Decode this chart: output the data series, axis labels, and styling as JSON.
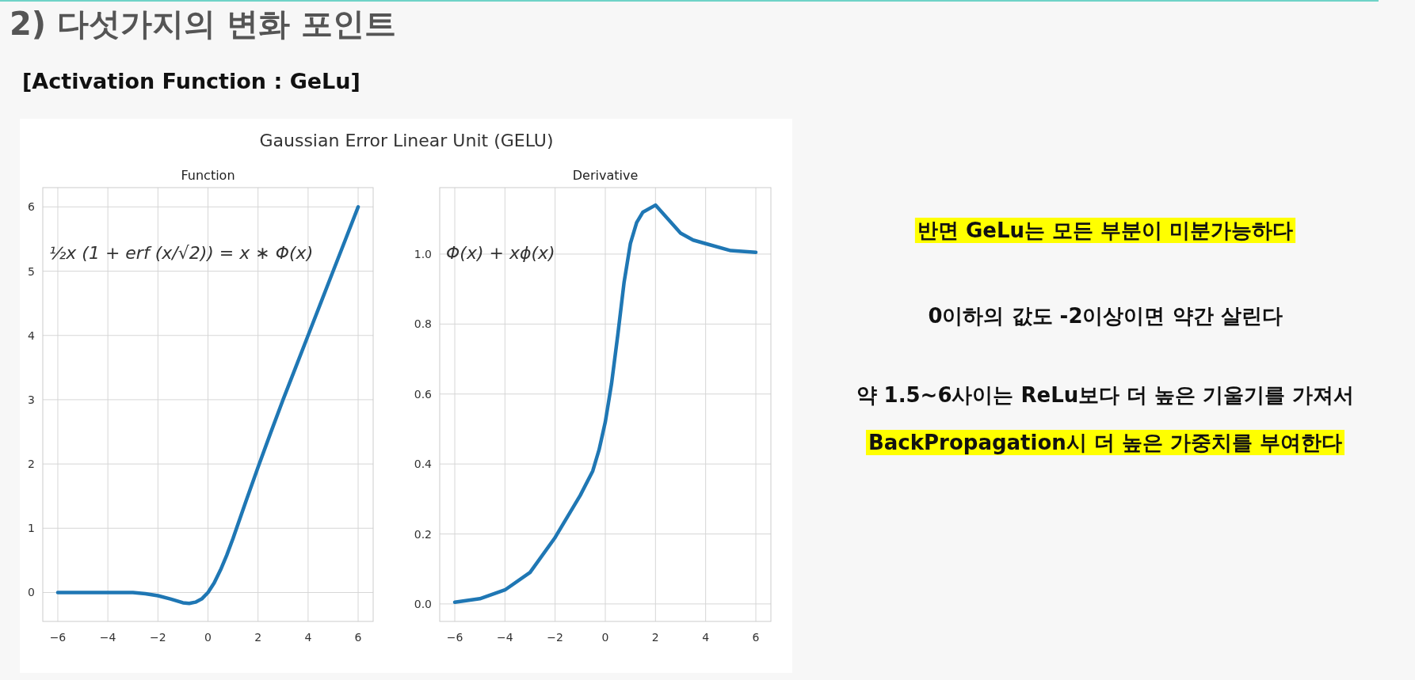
{
  "chart_data": [
    {
      "type": "other",
      "title": "2) 다섯가지의 변화 포인트",
      "subtitle": "[Activation Function : GeLu]"
    },
    {
      "type": "line",
      "title": "Function",
      "annotations": [
        "Gaussian Error Linear Unit (GELU)",
        "½x (1 + erf (x/√2)) = x ∗ Φ(x)"
      ],
      "series": [
        {
          "color": "#1f77b4",
          "x": [
            -6,
            -5.5,
            -5,
            -4.5,
            -4,
            -3.5,
            -3,
            -2.5,
            -2,
            -1.5,
            -1,
            -0.75,
            -0.5,
            -0.25,
            0,
            0.25,
            0.5,
            0.75,
            1,
            1.5,
            2,
            2.5,
            3,
            3.5,
            4,
            4.5,
            5,
            5.5,
            6
          ],
          "values": [
            0,
            0,
            0,
            0,
            0,
            0,
            0,
            -0.02,
            -0.05,
            -0.1,
            -0.16,
            -0.17,
            -0.15,
            -0.1,
            0,
            0.15,
            0.35,
            0.58,
            0.84,
            1.4,
            1.95,
            2.48,
            3,
            3.5,
            4,
            4.5,
            5,
            5.5,
            6
          ]
        }
      ],
      "xlim": [
        -6.6,
        6.6
      ],
      "ylim": [
        -0.45,
        6.3
      ],
      "xticks": [
        {
          "value": -6,
          "label": "−6"
        },
        {
          "value": -4,
          "label": "−4"
        },
        {
          "value": -2,
          "label": "−2"
        },
        0,
        2,
        4,
        6
      ],
      "yticks": [
        0,
        1,
        2,
        3,
        4,
        5,
        6
      ],
      "grid": true,
      "line_style": "solid",
      "marker": "none"
    },
    {
      "type": "line",
      "title": "Derivative",
      "annotations": [
        "Φ(x) + xϕ(x)"
      ],
      "series": [
        {
          "color": "#1f77b4",
          "x": [
            -6,
            -5,
            -4,
            -3,
            -2,
            -1.5,
            -1,
            -0.5,
            -0.25,
            0,
            0.25,
            0.5,
            0.75,
            1,
            1.25,
            1.5,
            2,
            2.5,
            3,
            3.5,
            4,
            5,
            6
          ],
          "values": [
            0.005,
            0.015,
            0.04,
            0.09,
            0.19,
            0.25,
            0.31,
            0.38,
            0.44,
            0.52,
            0.63,
            0.77,
            0.92,
            1.03,
            1.09,
            1.12,
            1.14,
            1.1,
            1.06,
            1.04,
            1.03,
            1.01,
            1.005
          ]
        }
      ],
      "xlim": [
        -6.6,
        6.6
      ],
      "ylim": [
        -0.05,
        1.19
      ],
      "xticks": [
        {
          "value": -6,
          "label": "−6"
        },
        {
          "value": -4,
          "label": "−4"
        },
        {
          "value": -2,
          "label": "−2"
        },
        0,
        2,
        4,
        6
      ],
      "yticks": [
        {
          "value": 0,
          "label": "0.0"
        },
        0.2,
        0.4,
        0.6,
        0.8,
        {
          "value": 1,
          "label": "1.0"
        }
      ],
      "grid": true,
      "line_style": "solid",
      "marker": "none"
    },
    {
      "type": "other",
      "annotations": [
        "반면 GeLu는 모든 부분이 미분가능하다",
        "0이하의 값도 -2이상이면 약간 살린다",
        "약 1.5~6사이는 ReLu보다 더 높은 기울기를 가져서",
        "BackPropagation시 더 높은 가중치를 부여한다"
      ]
    }
  ]
}
